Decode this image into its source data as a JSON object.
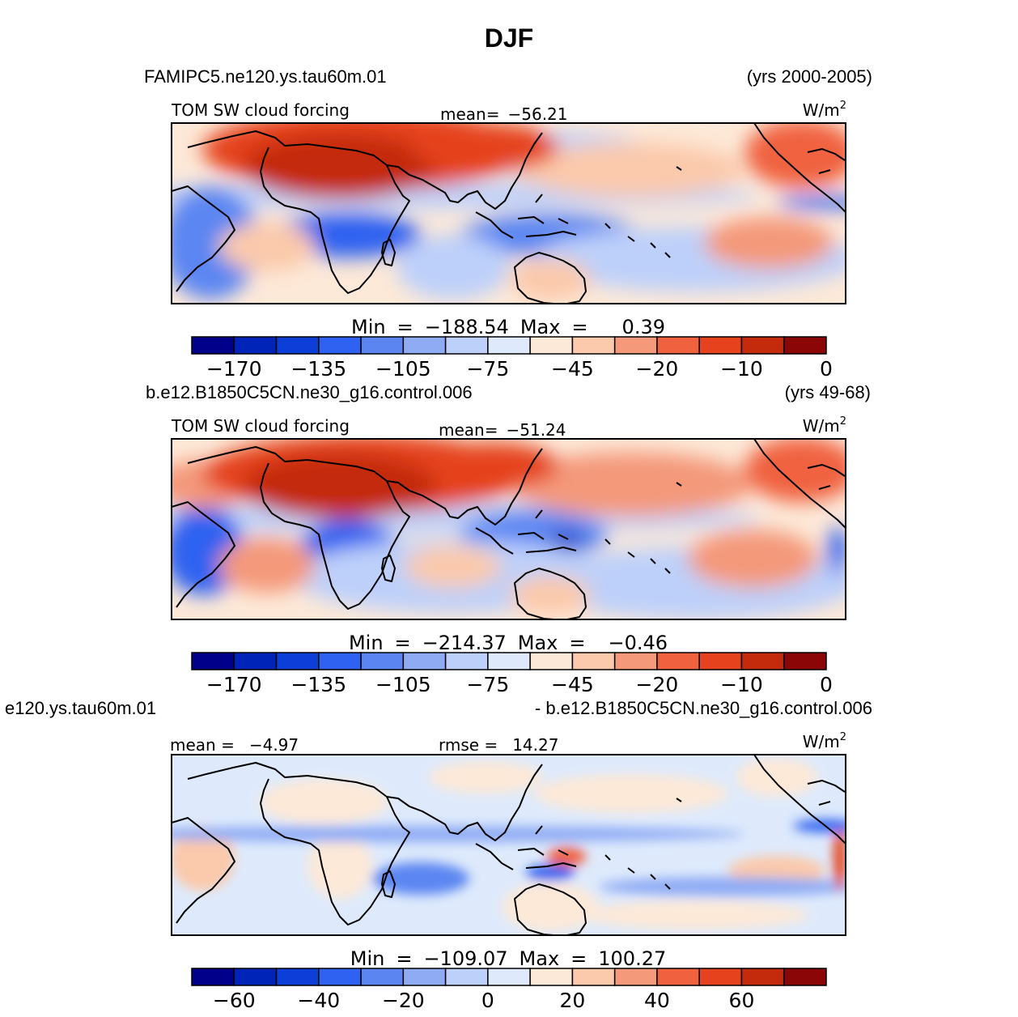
{
  "chart_data": {
    "type": "heatmap",
    "title": "DJF",
    "colors": [
      "#00008b",
      "#0024b8",
      "#0d3fd8",
      "#2f62f0",
      "#5b86f2",
      "#8eabf4",
      "#bdd0fa",
      "#deeafc",
      "#fde9d8",
      "#fbc9ab",
      "#f4997a",
      "#f0623f",
      "#e5421d",
      "#c42a0c",
      "#8b0606"
    ],
    "panels": [
      {
        "case_name": "FAMIPC5.ne120.ys.tau60m.01",
        "years": "(yrs 2000-2005)",
        "field_label": "TOM SW cloud forcing",
        "stat_label": "mean=",
        "stat_value": "−56.21",
        "units": "W/m",
        "units_exp": "2",
        "min_label": "Min",
        "min_value": "−188.54",
        "max_label": "Max",
        "max_value": "0.39",
        "colorbar_ticks": [
          "−170",
          "−135",
          "−105",
          "−75",
          "−45",
          "−20",
          "−10",
          "0"
        ]
      },
      {
        "case_name": "b.e12.B1850C5CN.ne30_g16.control.006",
        "years": "(yrs 49-68)",
        "field_label": "TOM SW cloud forcing",
        "stat_label": "mean=",
        "stat_value": "−51.24",
        "units": "W/m",
        "units_exp": "2",
        "min_label": "Min",
        "min_value": "−214.37",
        "max_label": "Max",
        "max_value": "−0.46",
        "colorbar_ticks": [
          "−170",
          "−135",
          "−105",
          "−75",
          "−45",
          "−20",
          "−10",
          "0"
        ]
      },
      {
        "case_left": "e120.ys.tau60m.01",
        "case_right": "- b.e12.B1850C5CN.ne30_g16.control.006",
        "mean_label": "mean =",
        "mean_value": "−4.97",
        "rmse_label": "rmse =",
        "rmse_value": "14.27",
        "units": "W/m",
        "units_exp": "2",
        "min_label": "Min",
        "min_value": "−109.07",
        "max_label": "Max",
        "max_value": "100.27",
        "colorbar_ticks": [
          "−60",
          "−40",
          "−20",
          "0",
          "20",
          "40",
          "60"
        ]
      }
    ]
  }
}
